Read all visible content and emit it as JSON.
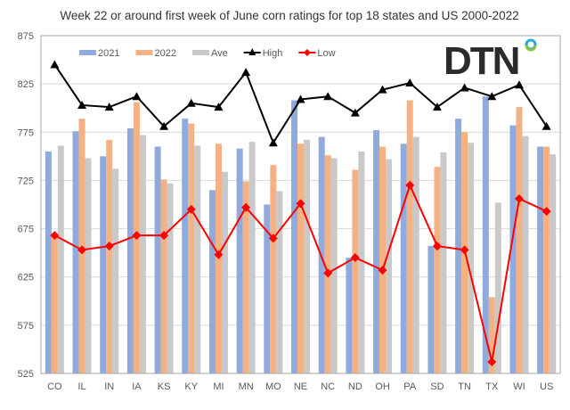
{
  "chart_data": {
    "type": "bar",
    "title": "Week 22 or around first week of June corn ratings for top 18 states and US 2000-2022",
    "xlabel": "",
    "ylabel": "",
    "ylim": [
      525,
      875
    ],
    "yticks": [
      525,
      575,
      625,
      675,
      725,
      775,
      825,
      875
    ],
    "grid": true,
    "legend_position": "top-left",
    "categories": [
      "CO",
      "IL",
      "IN",
      "IA",
      "KS",
      "KY",
      "MI",
      "MN",
      "MO",
      "NE",
      "NC",
      "ND",
      "OH",
      "PA",
      "SD",
      "TN",
      "TX",
      "WI",
      "US"
    ],
    "series": [
      {
        "name": "2021",
        "type": "bar",
        "color": "#8faadc",
        "values": [
          755,
          776,
          750,
          779,
          760,
          789,
          715,
          758,
          700,
          808,
          770,
          645,
          777,
          763,
          657,
          789,
          812,
          782,
          760
        ]
      },
      {
        "name": "2022",
        "type": "bar",
        "color": "#f4b183",
        "values": [
          668,
          789,
          767,
          806,
          726,
          784,
          763,
          724,
          741,
          763,
          751,
          736,
          760,
          808,
          739,
          775,
          604,
          801,
          760
        ]
      },
      {
        "name": "Ave",
        "type": "bar",
        "color": "#c9c9c9",
        "values": [
          761,
          748,
          737,
          772,
          722,
          761,
          734,
          765,
          714,
          767,
          748,
          755,
          747,
          770,
          754,
          764,
          702,
          771,
          752
        ]
      },
      {
        "name": "High",
        "type": "line",
        "color": "#000000",
        "marker": "triangle",
        "values": [
          845,
          803,
          801,
          812,
          781,
          805,
          801,
          837,
          764,
          809,
          812,
          795,
          819,
          826,
          801,
          821,
          812,
          824,
          781
        ]
      },
      {
        "name": "Low",
        "type": "line",
        "color": "#ff0000",
        "marker": "diamond",
        "values": [
          668,
          653,
          657,
          668,
          668,
          695,
          648,
          697,
          665,
          701,
          629,
          645,
          632,
          720,
          657,
          653,
          537,
          706,
          693
        ]
      }
    ]
  },
  "logo": {
    "text": "DTN",
    "dot_colors": [
      "#29a8e0",
      "#8cc63f"
    ]
  }
}
